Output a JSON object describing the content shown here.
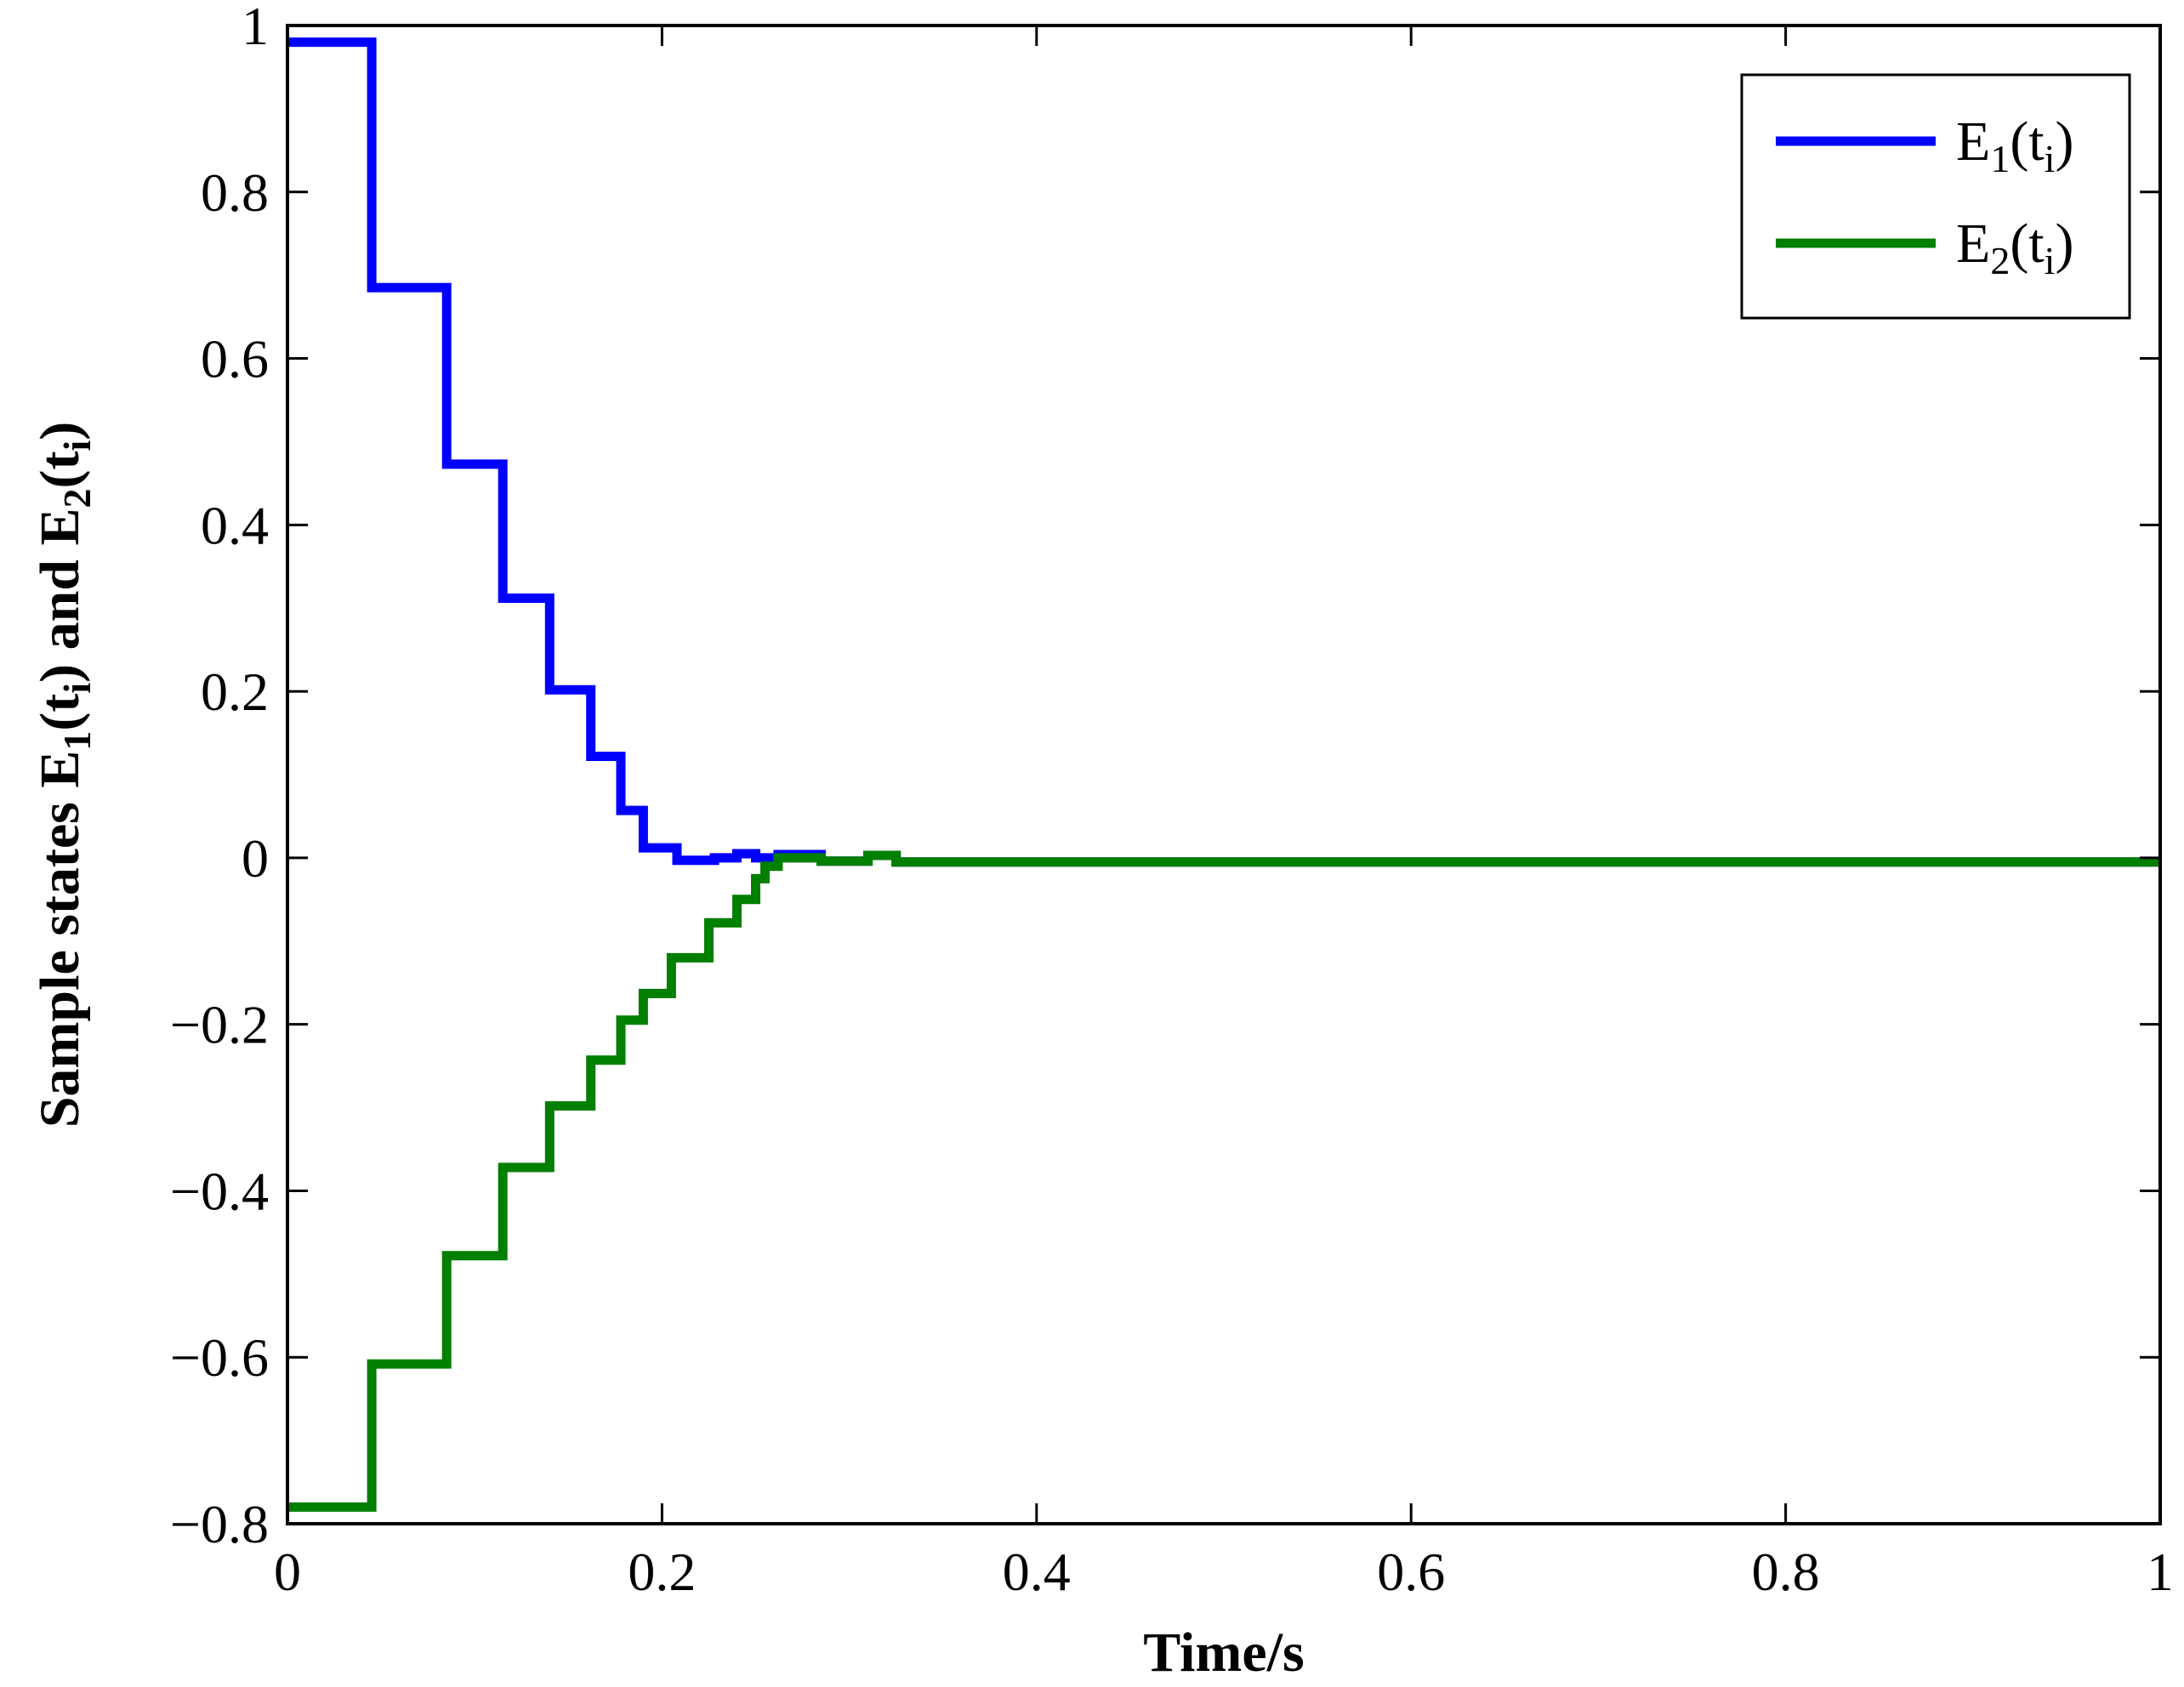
{
  "chart_data": {
    "type": "line",
    "title": "",
    "xlabel": "Time/s",
    "ylabel": {
      "parts": [
        "Sample states E",
        "1",
        "(t",
        "i",
        ") and E",
        "2",
        "(t",
        "i",
        ")"
      ]
    },
    "xlim": [
      0,
      1
    ],
    "ylim": [
      -0.8,
      1
    ],
    "xticks": [
      0,
      0.2,
      0.4,
      0.6,
      0.8,
      1
    ],
    "xtick_labels": [
      "0",
      "0.2",
      "0.4",
      "0.6",
      "0.8",
      "1"
    ],
    "yticks": [
      -0.8,
      -0.6,
      -0.4,
      -0.2,
      0,
      0.2,
      0.4,
      0.6,
      0.8,
      1
    ],
    "ytick_labels": [
      "−0.8",
      "−0.6",
      "−0.4",
      "−0.2",
      "0",
      "0.2",
      "0.4",
      "0.6",
      "0.8",
      "1"
    ],
    "grid": false,
    "legend_position": "top-right",
    "series": [
      {
        "label_parts": [
          "E",
          "1",
          "(t",
          "i",
          ")"
        ],
        "color": "#0000ff",
        "step": true,
        "x": [
          0,
          0.045,
          0.085,
          0.115,
          0.14,
          0.162,
          0.178,
          0.19,
          0.208,
          0.228,
          0.24,
          0.25,
          0.262,
          0.285,
          0.31,
          0.325,
          1
        ],
        "y": [
          0.98,
          0.685,
          0.473,
          0.312,
          0.202,
          0.122,
          0.057,
          0.012,
          -0.003,
          0.0,
          0.005,
          0.0,
          0.004,
          -0.004,
          0.003,
          -0.005,
          -0.005
        ]
      },
      {
        "label_parts": [
          "E",
          "2",
          "(t",
          "i",
          ")"
        ],
        "color": "#007f00",
        "step": true,
        "x": [
          0,
          0.045,
          0.085,
          0.115,
          0.14,
          0.162,
          0.178,
          0.19,
          0.205,
          0.225,
          0.24,
          0.25,
          0.255,
          0.262,
          0.285,
          0.31,
          0.325,
          1
        ],
        "y": [
          -0.78,
          -0.608,
          -0.478,
          -0.372,
          -0.298,
          -0.243,
          -0.195,
          -0.163,
          -0.12,
          -0.078,
          -0.05,
          -0.025,
          -0.01,
          0.0,
          -0.004,
          0.003,
          -0.005,
          -0.005
        ]
      }
    ]
  }
}
